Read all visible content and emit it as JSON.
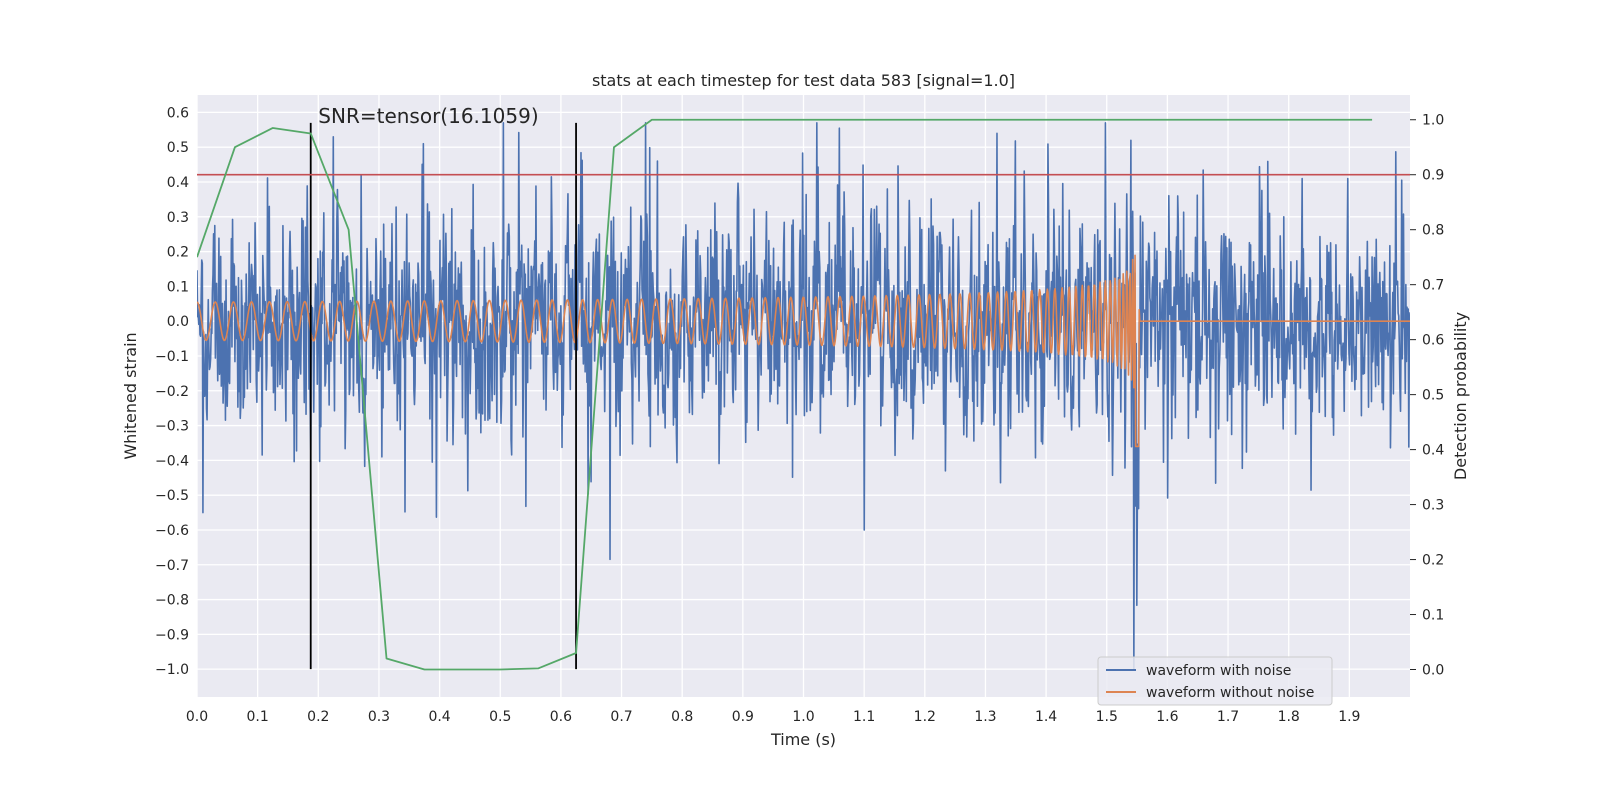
{
  "chart_data": {
    "type": "line",
    "title": "stats at each timestep for test data 583 [signal=1.0]",
    "xlabel": "Time (s)",
    "ylabel_left": "Whitened strain",
    "ylabel_right": "Detection probability",
    "xlim": [
      0.0,
      2.0
    ],
    "ylim_left": [
      -1.08,
      0.65
    ],
    "ylim_right": [
      -0.05,
      1.045
    ],
    "x_ticks": [
      0.0,
      0.1,
      0.2,
      0.3,
      0.4,
      0.5,
      0.6,
      0.7,
      0.8,
      0.9,
      1.0,
      1.1,
      1.2,
      1.3,
      1.4,
      1.5,
      1.6,
      1.7,
      1.8,
      1.9
    ],
    "x_tick_labels": [
      "0.0",
      "0.1",
      "0.2",
      "0.3",
      "0.4",
      "0.5",
      "0.6",
      "0.7",
      "0.8",
      "0.9",
      "1.0",
      "1.1",
      "1.2",
      "1.3",
      "1.4",
      "1.5",
      "1.6",
      "1.7",
      "1.8",
      "1.9"
    ],
    "y_left_ticks": [
      0.6,
      0.5,
      0.4,
      0.3,
      0.2,
      0.1,
      0.0,
      -0.1,
      -0.2,
      -0.3,
      -0.4,
      -0.5,
      -0.6,
      -0.7,
      -0.8,
      -0.9,
      -1.0
    ],
    "y_left_tick_labels": [
      "0.6",
      "0.5",
      "0.4",
      "0.3",
      "0.2",
      "0.1",
      "0.0",
      "−0.1",
      "−0.2",
      "−0.3",
      "−0.4",
      "−0.5",
      "−0.6",
      "−0.7",
      "−0.8",
      "−0.9",
      "−1.0"
    ],
    "y_right_ticks": [
      1.0,
      0.9,
      0.8,
      0.7,
      0.6,
      0.5,
      0.4,
      0.3,
      0.2,
      0.1,
      0.0
    ],
    "y_right_tick_labels": [
      "1.0",
      "0.9",
      "0.8",
      "0.7",
      "0.6",
      "0.5",
      "0.4",
      "0.3",
      "0.2",
      "0.1",
      "0.0"
    ],
    "annotation": "SNR=tensor(16.1059)",
    "threshold_probability": 0.9,
    "vertical_lines": {
      "x": [
        0.1875,
        0.625
      ],
      "y_range": [
        -1.0,
        0.57
      ]
    },
    "series": [
      {
        "name": "waveform with noise",
        "color": "#4c72b0",
        "kind": "noisy_strain",
        "x_range": [
          0.0,
          2.0
        ],
        "n_points": 2048,
        "noise_std": 0.16,
        "y_range": [
          -1.0,
          0.57
        ],
        "notable_points": [
          {
            "x": 1.545,
            "y": -1.0
          },
          {
            "x": 1.54,
            "y": 0.52
          },
          {
            "x": 0.74,
            "y": 0.57
          },
          {
            "x": 0.225,
            "y": 0.53
          },
          {
            "x": 1.1,
            "y": -0.6
          },
          {
            "x": 0.01,
            "y": -0.55
          }
        ]
      },
      {
        "name": "waveform without noise",
        "color": "#dd8452",
        "kind": "chirp",
        "x_range": [
          0.0,
          2.0
        ],
        "merger_time": 1.55,
        "amplitude_start": 0.055,
        "amplitude_peak": 0.3,
        "amplitude_min_at_merger": -0.36,
        "cycles_before_0_6": 20
      },
      {
        "name": "Detection probability",
        "color": "#55a868",
        "axis": "right",
        "x": [
          0.0,
          0.0625,
          0.125,
          0.1875,
          0.25,
          0.3125,
          0.375,
          0.4375,
          0.5,
          0.5625,
          0.625,
          0.6875,
          0.75,
          0.8125,
          0.875,
          0.9375,
          1.0,
          1.0625,
          1.125,
          1.1875,
          1.25,
          1.3125,
          1.375,
          1.4375,
          1.5,
          1.5625,
          1.625,
          1.6875,
          1.75,
          1.8125,
          1.875,
          1.9375
        ],
        "values": [
          0.75,
          0.95,
          0.985,
          0.975,
          0.8,
          0.02,
          0.0,
          0.0,
          0.0,
          0.002,
          0.03,
          0.95,
          1.0,
          1.0,
          1.0,
          1.0,
          1.0,
          1.0,
          1.0,
          1.0,
          1.0,
          1.0,
          1.0,
          1.0,
          1.0,
          1.0,
          1.0,
          1.0,
          1.0,
          1.0,
          1.0,
          1.0
        ]
      }
    ],
    "legend": {
      "location": "lower-right",
      "entries": [
        {
          "label": "waveform with noise",
          "color": "#4c72b0"
        },
        {
          "label": "waveform without noise",
          "color": "#dd8452"
        }
      ]
    },
    "colors": {
      "background": "#eaeaf2",
      "grid": "#ffffff",
      "threshold": "#c44e52",
      "vlines": "#000000"
    }
  }
}
